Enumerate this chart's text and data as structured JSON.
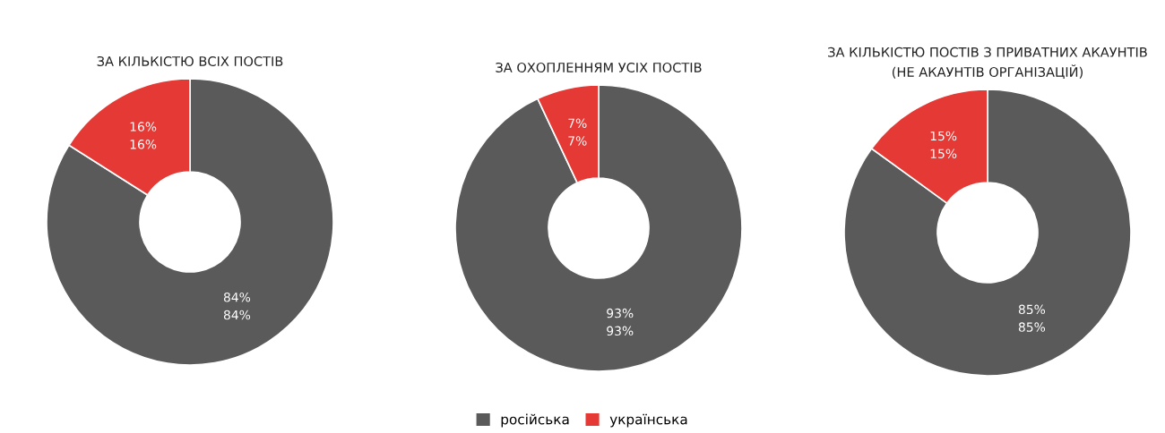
{
  "chart_data": [
    {
      "type": "donut",
      "title": "ЗА КІЛЬКІСТЮ ВСІХ ПОСТІВ",
      "categories": [
        "російська",
        "українська"
      ],
      "values": [
        84,
        16
      ],
      "colors": [
        "#5a5a5a",
        "#e53935"
      ],
      "value_labels": [
        "84%\n84%",
        "16%\n16%"
      ],
      "legend": "bottom"
    },
    {
      "type": "donut",
      "title": "ЗА ОХОПЛЕННЯМ УСІХ ПОСТІВ",
      "categories": [
        null,
        null
      ],
      "values": [
        93,
        7
      ],
      "colors": [
        "#5a5a5a",
        "#e53935"
      ],
      "value_labels": [
        "93%\n93%",
        "7%\n7%"
      ]
    },
    {
      "type": "donut",
      "title": "ЗА КІЛЬКІСТЮ ПОСТІВ З ПРИВАТНИХ АКАУНТІВ\n(НЕ АКАУНТІВ ОРГАНІЗАЦІЙ)",
      "categories": [
        null,
        null
      ],
      "values": [
        85,
        15
      ],
      "colors": [
        "#5a5a5a",
        "#e53935"
      ],
      "value_labels": [
        "85%\n85%",
        "15%\n15%"
      ]
    }
  ]
}
